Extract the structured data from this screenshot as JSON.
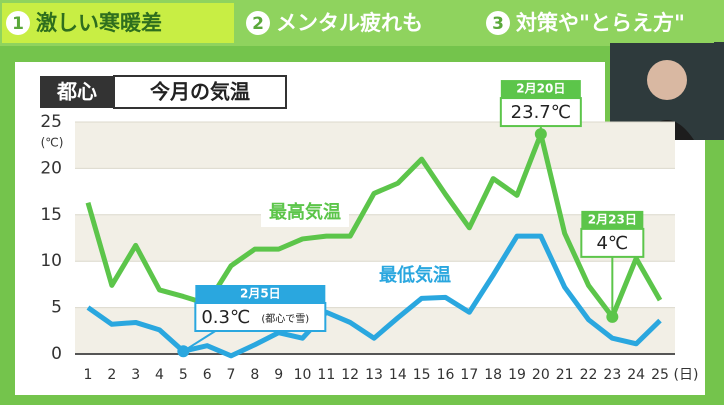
{
  "tabs": [
    {
      "number": "1",
      "label": "激しい寒暖差"
    },
    {
      "number": "2",
      "label": "メンタル疲れも"
    },
    {
      "number": "3",
      "label": "対策や\"とらえ方\""
    }
  ],
  "chart_data": {
    "type": "line",
    "badge": "都心",
    "title": "今月の気温",
    "y_unit": "(℃)",
    "x_unit": "(日)",
    "categories": [
      "1",
      "2",
      "3",
      "4",
      "5",
      "6",
      "7",
      "8",
      "9",
      "10",
      "11",
      "12",
      "13",
      "14",
      "15",
      "16",
      "17",
      "18",
      "19",
      "20",
      "21",
      "22",
      "23",
      "24",
      "25"
    ],
    "ylim": [
      -0.5,
      25.5
    ],
    "yticks": [
      0,
      5,
      10,
      15,
      20,
      25
    ],
    "series": [
      {
        "name": "最高気温",
        "color": "#5cc54a",
        "values": [
          16.3,
          7.4,
          11.7,
          6.9,
          6.2,
          5.4,
          9.5,
          11.3,
          11.3,
          12.4,
          12.7,
          12.7,
          17.3,
          18.4,
          21.0,
          17.2,
          13.6,
          18.9,
          17.1,
          23.7,
          13.0,
          7.4,
          4,
          10.3,
          5.8
        ],
        "value_labels": [
          null,
          null,
          null,
          null,
          null,
          null,
          null,
          null,
          null,
          null,
          null,
          null,
          null,
          null,
          null,
          null,
          null,
          null,
          null,
          "23.7℃",
          null,
          null,
          "4℃",
          null,
          null
        ],
        "callouts": [
          {
            "date": "2月20日"
          },
          {
            "date": "2月23日"
          }
        ]
      },
      {
        "name": "最低気温",
        "color": "#2aa7df",
        "values": [
          5.0,
          3.2,
          3.4,
          2.6,
          0.3,
          0.9,
          -0.2,
          1.0,
          2.3,
          1.7,
          4.5,
          3.4,
          1.7,
          3.9,
          6.0,
          6.1,
          4.5,
          8.5,
          12.7,
          12.7,
          7.2,
          3.7,
          1.7,
          1.1,
          3.6
        ],
        "value_labels": [
          null,
          null,
          null,
          null,
          "0.3℃",
          null,
          null,
          null,
          null,
          null,
          null,
          null,
          null,
          null,
          null,
          null,
          null,
          null,
          null,
          null,
          null,
          null,
          null,
          null,
          null
        ],
        "callouts": [
          {
            "date": "2月5日",
            "note": "(都心で雪)"
          }
        ]
      }
    ]
  }
}
